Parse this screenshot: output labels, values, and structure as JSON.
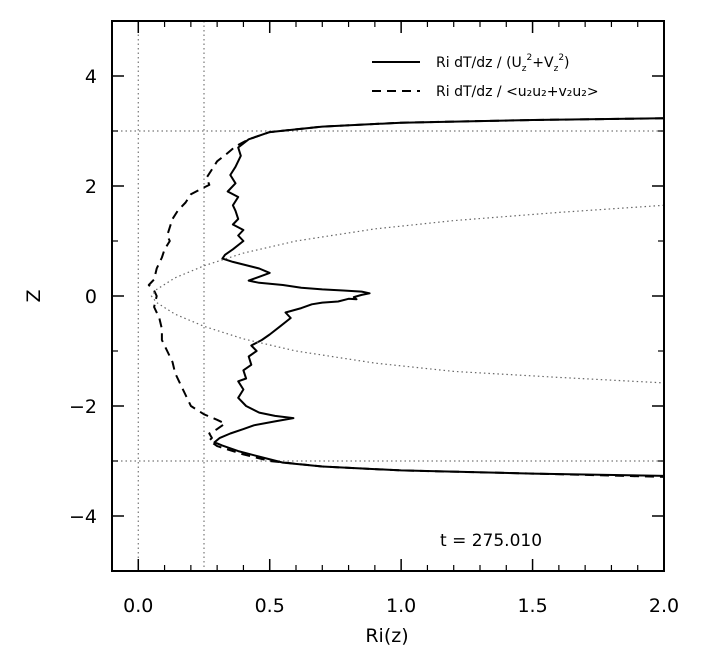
{
  "chart_data": {
    "type": "line",
    "xlabel": "Ri(z)",
    "ylabel": "Z",
    "xlim": [
      -0.1,
      2.0
    ],
    "ylim": [
      -5.0,
      5.0
    ],
    "xticks": [
      0.0,
      0.5,
      1.0,
      1.5,
      2.0
    ],
    "xtick_labels": [
      "0.0",
      "0.5",
      "1.0",
      "1.5",
      "2.0"
    ],
    "yticks": [
      -4,
      -2,
      0,
      2,
      4
    ],
    "ytick_labels": [
      "−4",
      "−2",
      "0",
      "2",
      "4"
    ],
    "grid": false,
    "legend_position": "top-right",
    "legend": [
      {
        "style": "solid",
        "prefix": "Ri dT/dz / (U",
        "s1": "z",
        "mid1": "2",
        "join": "+V",
        "s2": "z",
        "mid2": "2",
        "suffix": ")"
      },
      {
        "style": "dashed",
        "text": "Ri dT/dz / <u₂u₂+v₂u₂>"
      }
    ],
    "annotation": "t = 275.010",
    "reference_lines": {
      "vertical_x": [
        0.0,
        0.25
      ],
      "horizontal_y": [
        3.0,
        -3.0
      ]
    },
    "series": [
      {
        "style": "solid",
        "points": [
          [
            2.0,
            3.23
          ],
          [
            1.5,
            3.2
          ],
          [
            1.0,
            3.15
          ],
          [
            0.7,
            3.08
          ],
          [
            0.5,
            2.98
          ],
          [
            0.42,
            2.85
          ],
          [
            0.38,
            2.7
          ],
          [
            0.39,
            2.55
          ],
          [
            0.37,
            2.35
          ],
          [
            0.35,
            2.2
          ],
          [
            0.37,
            2.05
          ],
          [
            0.34,
            1.9
          ],
          [
            0.38,
            1.8
          ],
          [
            0.36,
            1.65
          ],
          [
            0.37,
            1.55
          ],
          [
            0.38,
            1.4
          ],
          [
            0.36,
            1.3
          ],
          [
            0.4,
            1.2
          ],
          [
            0.38,
            1.1
          ],
          [
            0.4,
            1.0
          ],
          [
            0.36,
            0.85
          ],
          [
            0.33,
            0.75
          ],
          [
            0.32,
            0.68
          ],
          [
            0.36,
            0.62
          ],
          [
            0.46,
            0.5
          ],
          [
            0.5,
            0.42
          ],
          [
            0.46,
            0.35
          ],
          [
            0.42,
            0.28
          ],
          [
            0.46,
            0.24
          ],
          [
            0.55,
            0.2
          ],
          [
            0.62,
            0.15
          ],
          [
            0.7,
            0.12
          ],
          [
            0.78,
            0.1
          ],
          [
            0.85,
            0.08
          ],
          [
            0.88,
            0.05
          ],
          [
            0.85,
            0.02
          ],
          [
            0.82,
            -0.02
          ],
          [
            0.83,
            -0.06
          ],
          [
            0.8,
            -0.05
          ],
          [
            0.76,
            -0.1
          ],
          [
            0.7,
            -0.12
          ],
          [
            0.66,
            -0.15
          ],
          [
            0.62,
            -0.22
          ],
          [
            0.56,
            -0.3
          ],
          [
            0.58,
            -0.4
          ],
          [
            0.54,
            -0.55
          ],
          [
            0.5,
            -0.7
          ],
          [
            0.47,
            -0.8
          ],
          [
            0.43,
            -0.9
          ],
          [
            0.45,
            -1.0
          ],
          [
            0.42,
            -1.1
          ],
          [
            0.43,
            -1.25
          ],
          [
            0.4,
            -1.35
          ],
          [
            0.41,
            -1.5
          ],
          [
            0.38,
            -1.55
          ],
          [
            0.4,
            -1.7
          ],
          [
            0.38,
            -1.85
          ],
          [
            0.41,
            -2.0
          ],
          [
            0.46,
            -2.12
          ],
          [
            0.52,
            -2.18
          ],
          [
            0.59,
            -2.22
          ],
          [
            0.52,
            -2.28
          ],
          [
            0.44,
            -2.35
          ],
          [
            0.4,
            -2.42
          ],
          [
            0.35,
            -2.5
          ],
          [
            0.31,
            -2.58
          ],
          [
            0.29,
            -2.66
          ],
          [
            0.32,
            -2.72
          ],
          [
            0.38,
            -2.82
          ],
          [
            0.46,
            -2.92
          ],
          [
            0.55,
            -3.03
          ],
          [
            0.7,
            -3.1
          ],
          [
            1.0,
            -3.17
          ],
          [
            1.5,
            -3.23
          ],
          [
            2.0,
            -3.27
          ]
        ]
      },
      {
        "style": "dashed",
        "points": [
          [
            2.0,
            3.23
          ],
          [
            1.5,
            3.2
          ],
          [
            1.0,
            3.15
          ],
          [
            0.7,
            3.08
          ],
          [
            0.5,
            2.98
          ],
          [
            0.42,
            2.85
          ],
          [
            0.37,
            2.72
          ],
          [
            0.34,
            2.6
          ],
          [
            0.3,
            2.45
          ],
          [
            0.28,
            2.3
          ],
          [
            0.26,
            2.15
          ],
          [
            0.27,
            2.02
          ],
          [
            0.24,
            1.95
          ],
          [
            0.2,
            1.85
          ],
          [
            0.18,
            1.7
          ],
          [
            0.15,
            1.55
          ],
          [
            0.13,
            1.4
          ],
          [
            0.12,
            1.25
          ],
          [
            0.11,
            1.1
          ],
          [
            0.12,
            1.0
          ],
          [
            0.1,
            0.85
          ],
          [
            0.09,
            0.7
          ],
          [
            0.07,
            0.5
          ],
          [
            0.06,
            0.3
          ],
          [
            0.04,
            0.2
          ],
          [
            0.06,
            0.1
          ],
          [
            0.07,
            0.0
          ],
          [
            0.06,
            -0.2
          ],
          [
            0.08,
            -0.4
          ],
          [
            0.09,
            -0.6
          ],
          [
            0.09,
            -0.8
          ],
          [
            0.11,
            -1.0
          ],
          [
            0.13,
            -1.2
          ],
          [
            0.14,
            -1.4
          ],
          [
            0.16,
            -1.6
          ],
          [
            0.18,
            -1.8
          ],
          [
            0.2,
            -2.0
          ],
          [
            0.25,
            -2.15
          ],
          [
            0.3,
            -2.25
          ],
          [
            0.33,
            -2.32
          ],
          [
            0.3,
            -2.42
          ],
          [
            0.27,
            -2.5
          ],
          [
            0.28,
            -2.58
          ],
          [
            0.27,
            -2.63
          ],
          [
            0.3,
            -2.73
          ],
          [
            0.4,
            -2.88
          ],
          [
            0.5,
            -3.0
          ],
          [
            0.7,
            -3.1
          ],
          [
            1.0,
            -3.17
          ],
          [
            1.5,
            -3.23
          ],
          [
            2.0,
            -3.29
          ]
        ]
      },
      {
        "style": "dotted",
        "points": [
          [
            2.0,
            1.65
          ],
          [
            1.6,
            1.52
          ],
          [
            1.2,
            1.37
          ],
          [
            0.9,
            1.22
          ],
          [
            0.6,
            1.0
          ],
          [
            0.4,
            0.78
          ],
          [
            0.25,
            0.55
          ],
          [
            0.14,
            0.33
          ],
          [
            0.07,
            0.12
          ],
          [
            0.05,
            0.0
          ],
          [
            0.07,
            -0.12
          ],
          [
            0.14,
            -0.33
          ],
          [
            0.25,
            -0.55
          ],
          [
            0.4,
            -0.78
          ],
          [
            0.6,
            -1.0
          ],
          [
            0.9,
            -1.22
          ],
          [
            1.2,
            -1.37
          ],
          [
            1.6,
            -1.48
          ],
          [
            2.0,
            -1.58
          ]
        ]
      }
    ]
  }
}
